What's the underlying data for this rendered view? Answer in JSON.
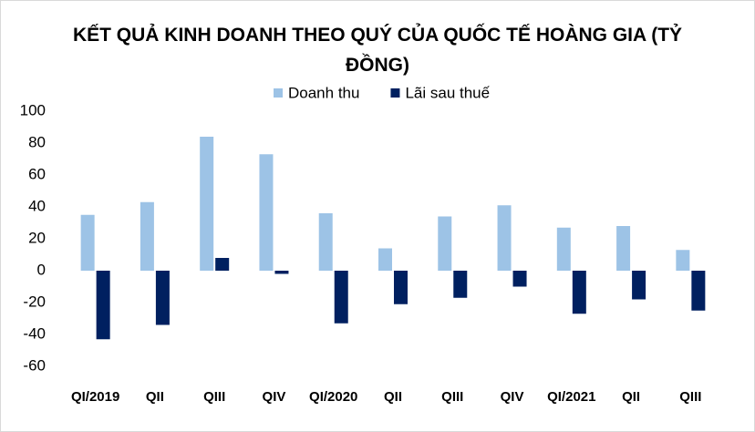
{
  "chart_data": {
    "type": "bar",
    "title": "KẾT QUẢ KINH DOANH THEO QUÝ CỦA QUỐC TẾ HOÀNG GIA (TỶ ĐỒNG)",
    "categories": [
      "QI/2019",
      "QII",
      "QIII",
      "QIV",
      "QI/2020",
      "QII",
      "QIII",
      "QIV",
      "QI/2021",
      "QII",
      "QIII"
    ],
    "series": [
      {
        "name": "Doanh thu",
        "color": "#9dc3e6",
        "values": [
          35,
          43,
          84,
          73,
          36,
          14,
          34,
          41,
          27,
          28,
          13
        ]
      },
      {
        "name": "Lãi sau thuế",
        "color": "#002060",
        "values": [
          -43,
          -34,
          8,
          -2,
          -33,
          -21,
          -17,
          -10,
          -27,
          -18,
          -25
        ]
      }
    ],
    "ylim": [
      -60,
      100
    ],
    "yticks": [
      -60,
      -40,
      -20,
      0,
      20,
      40,
      60,
      80,
      100
    ],
    "grid": false
  }
}
